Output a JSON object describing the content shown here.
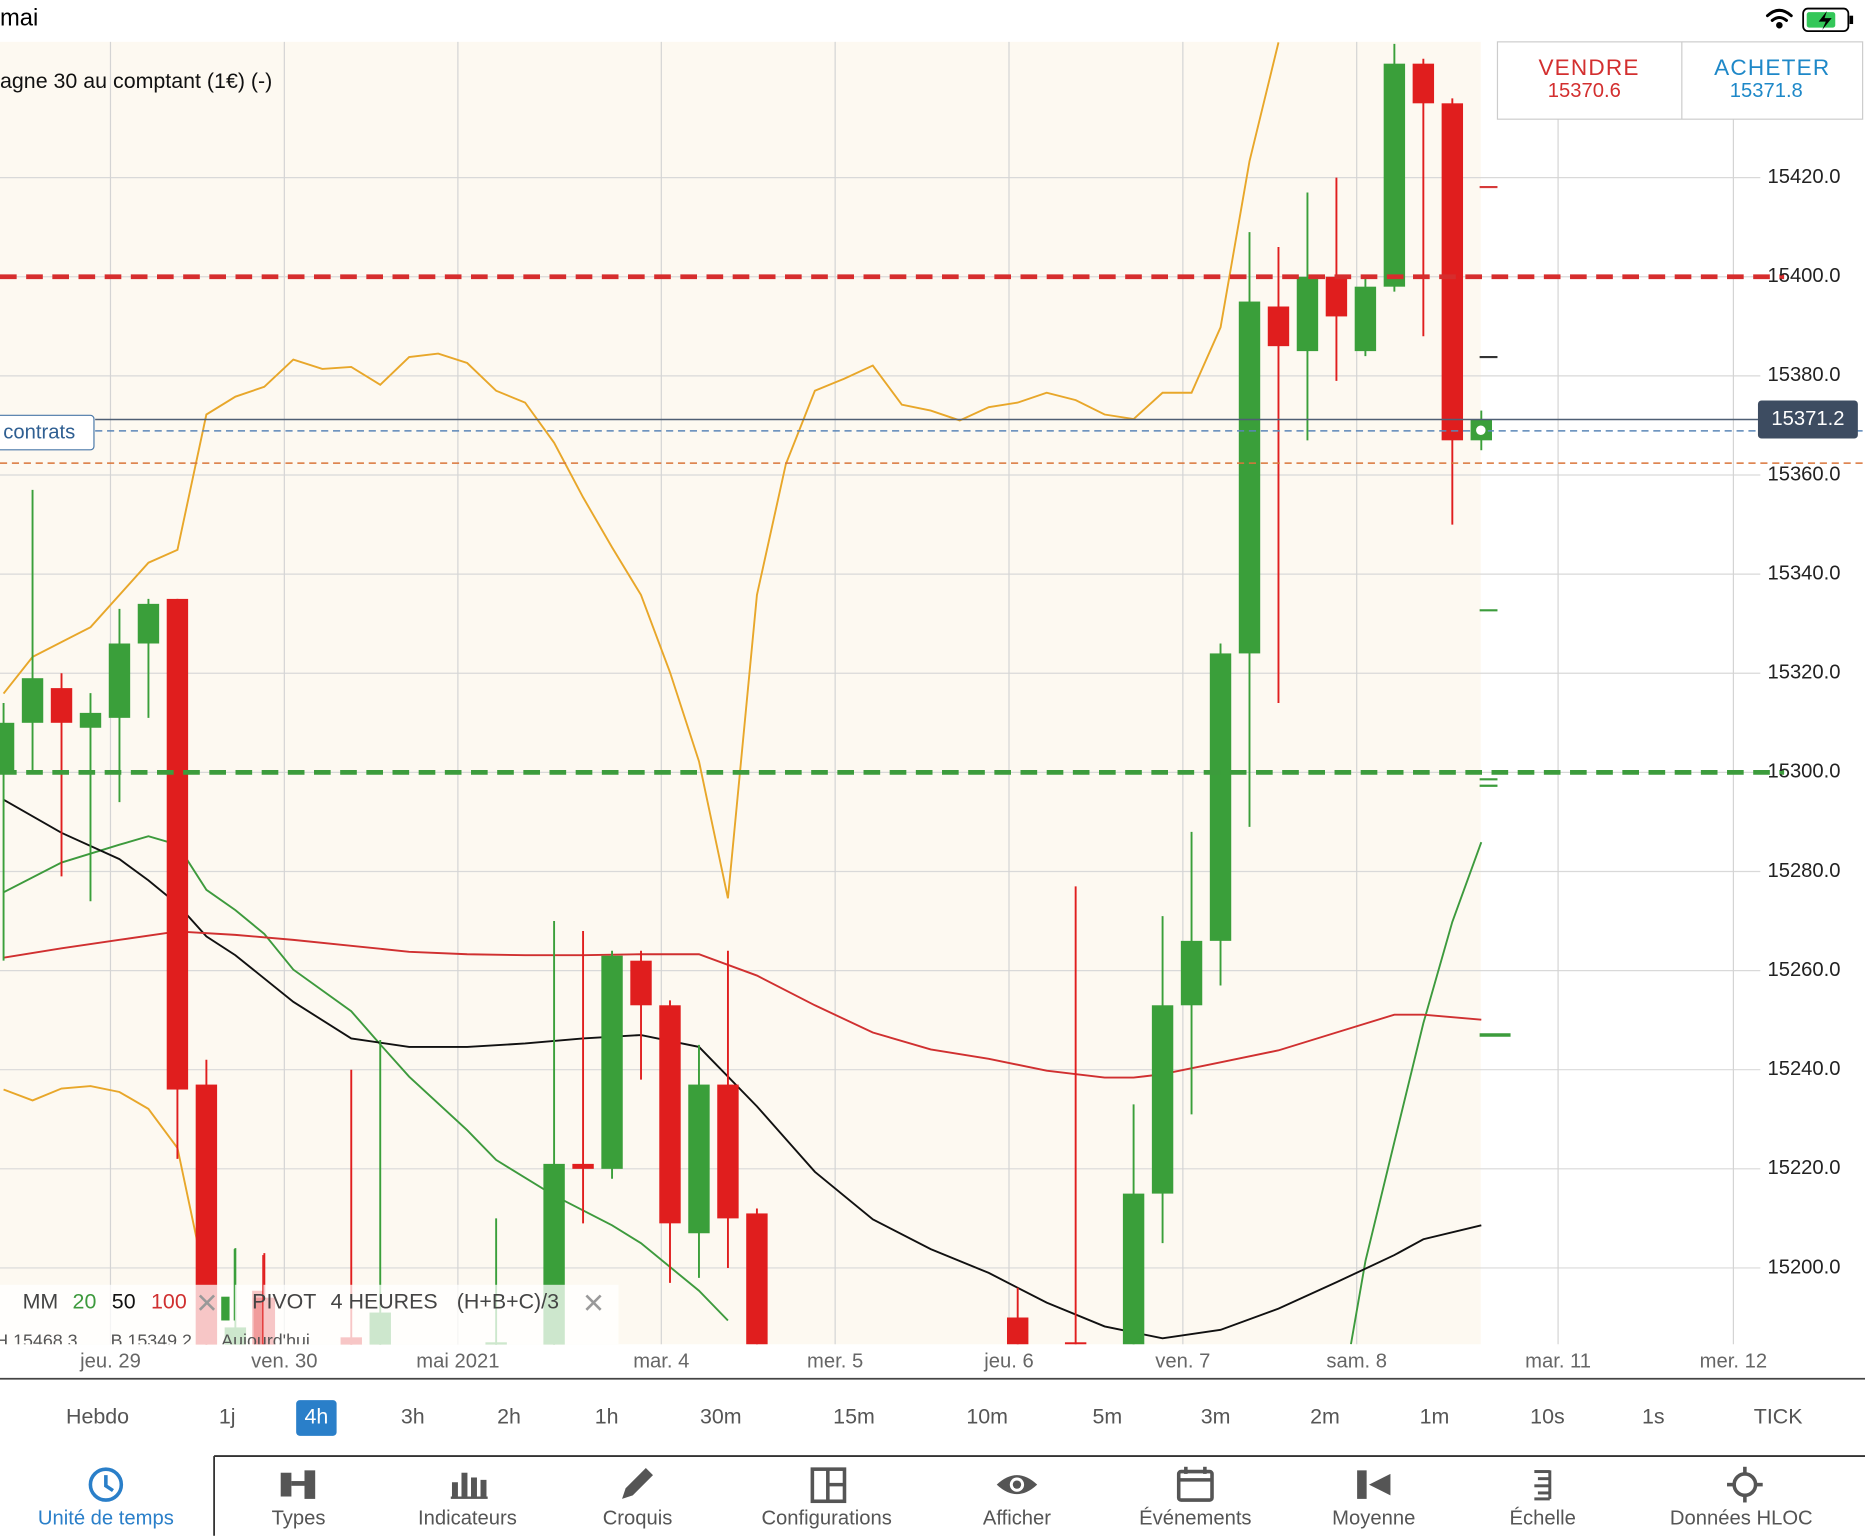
{
  "status_bar": {
    "title": "mai"
  },
  "instrument": "agne 30 au comptant (1€) (-)",
  "quote": {
    "sell_label": "VENDRE",
    "sell_price": "15370.6",
    "buy_label": "ACHETER",
    "buy_price": "15371.8"
  },
  "position_label": "contrats",
  "legend": {
    "ma_label": "MM",
    "pivot_label": "PIVOT",
    "pivot_period": "4 HEURES",
    "pivot_formula": "(H+B+C)/3",
    "high_label": "H 15468.3",
    "low_label": "B 15349.2",
    "today_label": "Aujourd'hui"
  },
  "chart_data": {
    "type": "candlestick",
    "xlim": [
      -0.123,
      60.63
    ],
    "xticks": [
      {
        "value": 3.69,
        "label": "jeu. 29"
      },
      {
        "value": 9.69,
        "label": "ven. 30"
      },
      {
        "value": 15.68,
        "label": "mai 2021"
      },
      {
        "value": 22.7,
        "label": "mar. 4"
      },
      {
        "value": 28.7,
        "label": "mer. 5"
      },
      {
        "value": 34.7,
        "label": "jeu. 6"
      },
      {
        "value": 40.7,
        "label": "ven. 7"
      },
      {
        "value": 46.7,
        "label": "sam. 8"
      },
      {
        "value": 53.65,
        "label": "mar. 11"
      },
      {
        "value": 59.7,
        "label": "mer. 12"
      }
    ],
    "ylim": [
      15184.6,
      15447.4
    ],
    "yticks": [
      {
        "value": 15200,
        "label": "15200.0"
      },
      {
        "value": 15220,
        "label": "15220.0"
      },
      {
        "value": 15240,
        "label": "15240.0"
      },
      {
        "value": 15260,
        "label": "15260.0"
      },
      {
        "value": 15280,
        "label": "15280.0"
      },
      {
        "value": 15300,
        "label": "15300.0"
      },
      {
        "value": 15320,
        "label": "15320.0"
      },
      {
        "value": 15340,
        "label": "15340.0"
      },
      {
        "value": 15360,
        "label": "15360.0"
      },
      {
        "value": 15380,
        "label": "15380.0"
      },
      {
        "value": 15400,
        "label": "15400.0"
      },
      {
        "value": 15420,
        "label": "15420.0"
      }
    ],
    "grid": true,
    "up_color": "#3a9f3a",
    "down_color": "#e01e1e",
    "x": [
      0,
      1,
      2,
      3,
      4,
      5,
      6,
      7,
      8,
      9,
      12,
      13,
      17,
      19,
      20,
      21,
      22,
      23,
      24,
      25,
      26,
      35,
      37,
      39,
      40,
      41,
      42,
      43,
      44,
      45,
      46,
      47,
      48,
      49,
      50,
      51
    ],
    "open": [
      15300,
      15310,
      15317,
      15309,
      15311,
      15326,
      15335,
      15237,
      15178,
      15194,
      15186,
      15175,
      15170,
      15170,
      15221,
      15220,
      15262,
      15253,
      15207,
      15237,
      15211,
      15190,
      15185,
      15175,
      15215,
      15253,
      15266,
      15324,
      15394,
      15385,
      15400,
      15385,
      15398,
      15443,
      15435,
      15367
    ],
    "high": [
      15314,
      15357,
      15320,
      15316,
      15333,
      15335,
      15335,
      15242,
      15204,
      15203,
      15240,
      15246,
      15210,
      15270,
      15268,
      15264,
      15264,
      15254,
      15245,
      15264,
      15212,
      15196,
      15277,
      15233,
      15271,
      15288,
      15326,
      15409,
      15406,
      15417,
      15420,
      15400,
      15447,
      15444,
      15436,
      15373
    ],
    "low": [
      15262,
      15300,
      15279,
      15274,
      15294,
      15311,
      15222,
      15140,
      15170,
      15165,
      15160,
      15165,
      15160,
      15160,
      15209,
      15218,
      15238,
      15197,
      15198,
      15200,
      15160,
      15175,
      15170,
      15170,
      15205,
      15231,
      15257,
      15289,
      15314,
      15367,
      15379,
      15384,
      15397,
      15388,
      15350,
      15365
    ],
    "close": [
      15310,
      15319,
      15310,
      15312,
      15326,
      15334,
      15236,
      15150,
      15188,
      15175,
      15170,
      15191,
      15185,
      15221,
      15220,
      15263,
      15253,
      15209,
      15237,
      15210,
      15170,
      15180,
      15175,
      15215,
      15253,
      15266,
      15324,
      15395,
      15386,
      15400,
      15392,
      15398,
      15443,
      15435,
      15367,
      15371.2
    ],
    "lines": [
      {
        "name": "20",
        "color": "#3d9a3d",
        "x": [
          0,
          2,
          4,
          5,
          6,
          7,
          8,
          9,
          10,
          12,
          13,
          14,
          16,
          17,
          19,
          21,
          22,
          24,
          25,
          30,
          46.5,
          47,
          48,
          49,
          50,
          51
        ],
        "values": [
          15275.8,
          15281.8,
          15285.4,
          15287.1,
          15285.4,
          15276.3,
          15272.2,
          15267.4,
          15260.2,
          15251.8,
          15245.1,
          15238.6,
          15227.8,
          15221.8,
          15214.6,
          15208.6,
          15205,
          15195.4,
          15189.4,
          null,
          15184.6,
          15201.4,
          15225.4,
          15249.4,
          15269.8,
          15285.9
        ]
      },
      {
        "name": "50",
        "color": "#111111",
        "x": [
          0,
          2,
          4,
          5,
          6,
          7,
          8,
          10,
          12,
          14,
          16,
          18,
          20,
          22,
          24,
          26,
          28,
          30,
          32,
          34,
          36,
          38,
          40,
          42,
          44,
          46,
          48,
          49,
          51
        ],
        "values": [
          15294.5,
          15287.8,
          15282.5,
          15278.2,
          15273.4,
          15266.9,
          15263.1,
          15253.7,
          15246.3,
          15244.6,
          15244.6,
          15245.3,
          15246.3,
          15247,
          15244.6,
          15232.6,
          15219.4,
          15209.8,
          15203.8,
          15199,
          15193,
          15188.2,
          15185.8,
          15187.5,
          15191.8,
          15197.1,
          15202.6,
          15205.8,
          15208.6
        ]
      },
      {
        "name": "100",
        "color": "#d03030",
        "x": [
          0,
          2,
          4,
          6,
          8,
          10,
          12,
          14,
          16,
          18,
          20,
          22,
          24,
          26,
          28,
          30,
          32,
          34,
          36,
          38,
          39,
          40,
          42,
          44,
          46,
          48,
          49,
          51
        ],
        "values": [
          15262.6,
          15264.5,
          15266.2,
          15267.9,
          15267.2,
          15266.2,
          15265,
          15263.8,
          15263.3,
          15263.1,
          15263.1,
          15263.3,
          15263.3,
          15259,
          15253,
          15247.5,
          15244.1,
          15242.2,
          15239.8,
          15238.4,
          15238.4,
          15239.1,
          15241.5,
          15243.9,
          15247.5,
          15251.1,
          15251.1,
          15250.1
        ]
      },
      {
        "color": "#e8a72a",
        "x": [
          0,
          1,
          3,
          5,
          6,
          7,
          8,
          9,
          10,
          11,
          12,
          13,
          14,
          15,
          16,
          17,
          18,
          19,
          20,
          21,
          22,
          23,
          24,
          25,
          26,
          27,
          28,
          29,
          30,
          31,
          32,
          33,
          34,
          35,
          36,
          37,
          38,
          39,
          40,
          41,
          42,
          43,
          44
        ],
        "values": [
          15315.9,
          15323.3,
          15329.3,
          15342.3,
          15344.9,
          15372.2,
          15375.8,
          15377.8,
          15383.3,
          15381.4,
          15381.8,
          15378.2,
          15383.8,
          15384.5,
          15382.6,
          15377,
          15374.6,
          15366.5,
          15355.5,
          15345.4,
          15335.8,
          15320.2,
          15302.2,
          15274.6,
          15335.8,
          15362.2,
          15377,
          15379.4,
          15382.1,
          15374.2,
          15373,
          15371,
          15373.7,
          15374.6,
          15376.6,
          15375.1,
          15372.2,
          15371.3,
          15376.6,
          15376.6,
          15389.8,
          15423.3,
          15447.3
        ]
      },
      {
        "color": "#e8a72a",
        "x": [
          0,
          1,
          2,
          3,
          4,
          5,
          6,
          7
        ],
        "values": [
          15236,
          15233.8,
          15236.2,
          15236.7,
          15235.5,
          15232.1,
          15224.2,
          15196.6
        ]
      }
    ],
    "reference_lines": [
      {
        "value": 15400,
        "color": "#d62d2d",
        "style": "bold-dashed"
      },
      {
        "value": 15300,
        "color": "#3c9c3c",
        "style": "bold-dashed"
      },
      {
        "value": 15368.9,
        "color": "#5b86b8",
        "style": "dashed"
      },
      {
        "value": 15362.4,
        "color": "#d9753a",
        "style": "dashed"
      }
    ],
    "last_price": 15371.2,
    "pivots": {
      "values": [
        15418.1,
        15383.8,
        15332.7,
        15298.6,
        15297.3,
        15247
      ],
      "colors": [
        "#d63a3a",
        "#333333",
        "#3c9c3c",
        "#3c9c3c",
        "#3c9c3c",
        "#3c9c3c"
      ]
    }
  },
  "timeframes": [
    {
      "label": "Hebdo"
    },
    {
      "label": "1j"
    },
    {
      "label": "4h",
      "selected": true
    },
    {
      "label": "3h"
    },
    {
      "label": "2h"
    },
    {
      "label": "1h"
    },
    {
      "label": "30m"
    },
    {
      "label": "15m"
    },
    {
      "label": "10m"
    },
    {
      "label": "5m"
    },
    {
      "label": "3m"
    },
    {
      "label": "2m"
    },
    {
      "label": "1m"
    },
    {
      "label": "10s"
    },
    {
      "label": "1s"
    },
    {
      "label": "TICK"
    }
  ],
  "toolbar": [
    {
      "label": "Unité de temps",
      "active": true
    },
    {
      "label": "Types"
    },
    {
      "label": "Indicateurs"
    },
    {
      "label": "Croquis"
    },
    {
      "label": "Configurations"
    },
    {
      "label": "Afficher"
    },
    {
      "label": "Événements"
    },
    {
      "label": "Moyenne"
    },
    {
      "label": "Échelle"
    },
    {
      "label": "Données HLOC"
    }
  ]
}
